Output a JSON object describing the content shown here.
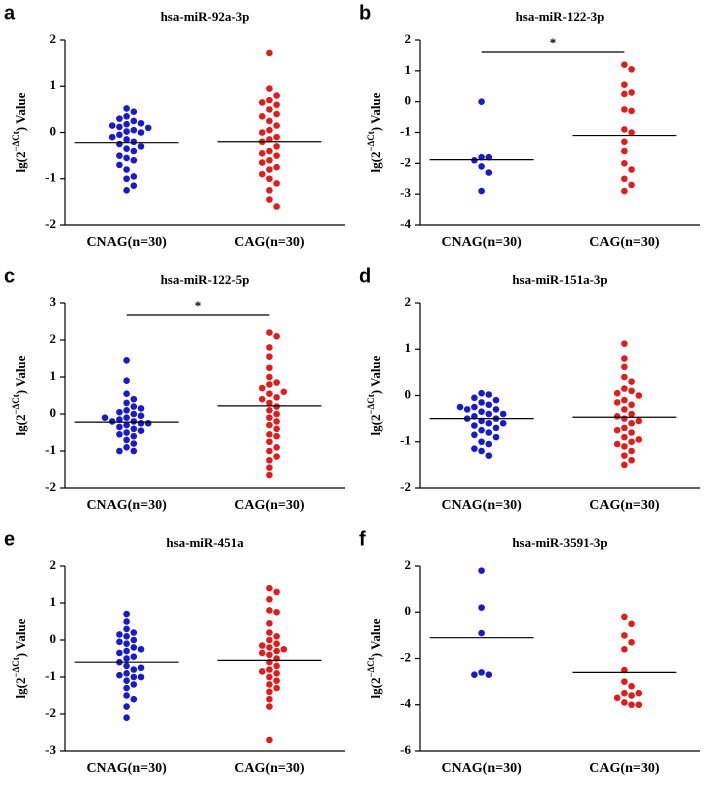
{
  "chart_data": [
    {
      "type": "strip",
      "panel": "a",
      "title": "hsa-miR-92a-3p",
      "ylabel": [
        "lg(2",
        "−ΔCt",
        ") Value"
      ],
      "ylim": [
        -2,
        2
      ],
      "yticks": [
        -2,
        -1,
        0,
        1,
        2
      ],
      "series": [
        {
          "name": "CNAG(n=30)",
          "color": "#1a1acd",
          "mean": -0.22,
          "values": [
            0.52,
            0.45,
            0.35,
            0.3,
            0.25,
            0.2,
            0.18,
            0.15,
            0.12,
            0.1,
            0.05,
            0.02,
            0,
            -0.05,
            -0.1,
            -0.15,
            -0.2,
            -0.25,
            -0.3,
            -0.35,
            -0.4,
            -0.5,
            -0.55,
            -0.6,
            -0.7,
            -0.8,
            -0.95,
            -1.0,
            -1.15,
            -1.25
          ]
        },
        {
          "name": "CAG(n=30)",
          "color": "#e01c1c",
          "mean": -0.2,
          "values": [
            1.72,
            0.95,
            0.8,
            0.7,
            0.65,
            0.6,
            0.5,
            0.4,
            0.35,
            0.25,
            0.15,
            0.05,
            0,
            -0.1,
            -0.15,
            -0.2,
            -0.3,
            -0.4,
            -0.45,
            -0.5,
            -0.6,
            -0.65,
            -0.75,
            -0.8,
            -0.9,
            -1.0,
            -1.1,
            -1.25,
            -1.45,
            -1.6
          ]
        }
      ]
    },
    {
      "type": "strip",
      "panel": "b",
      "title": "hsa-miR-122-3p",
      "ylabel": [
        "lg(2",
        "−ΔCt",
        ") Value"
      ],
      "ylim": [
        -4,
        2
      ],
      "yticks": [
        -4,
        -3,
        -2,
        -1,
        0,
        1,
        2
      ],
      "annotation": "*",
      "series": [
        {
          "name": "CNAG(n=30)",
          "color": "#1a1acd",
          "mean": -1.88,
          "values": [
            0,
            -1.8,
            -1.8,
            -1.9,
            -2.1,
            -2.3,
            -2.9
          ]
        },
        {
          "name": "CAG(n=30)",
          "color": "#e01c1c",
          "mean": -1.1,
          "values": [
            1.2,
            1.05,
            0.55,
            0.25,
            0.3,
            -0.25,
            -0.3,
            -0.9,
            -1.0,
            -1.3,
            -1.6,
            -2.0,
            -2.2,
            -2.5,
            -2.7,
            -2.9
          ]
        }
      ]
    },
    {
      "type": "strip",
      "panel": "c",
      "title": "hsa-miR-122-5p",
      "ylabel": [
        "lg(2",
        "−ΔCt",
        ") Value"
      ],
      "ylim": [
        -2,
        3
      ],
      "yticks": [
        -2,
        -1,
        0,
        1,
        2,
        3
      ],
      "annotation": "*",
      "series": [
        {
          "name": "CNAG(n=30)",
          "color": "#1a1acd",
          "mean": -0.22,
          "values": [
            1.45,
            0.9,
            0.55,
            0.4,
            0.3,
            0.2,
            0.1,
            0.05,
            0,
            -0.05,
            -0.1,
            -0.15,
            -0.2,
            -0.2,
            -0.25,
            -0.3,
            -0.35,
            -0.4,
            -0.5,
            -0.55,
            -0.6,
            -0.7,
            -0.8,
            -0.9,
            -1.0,
            -1.0,
            0.15,
            -0.45,
            -0.25,
            -0.1
          ]
        },
        {
          "name": "CAG(n=30)",
          "color": "#e01c1c",
          "mean": 0.22,
          "values": [
            2.2,
            2.1,
            1.8,
            1.55,
            1.25,
            1.0,
            0.85,
            0.8,
            0.7,
            0.55,
            0.45,
            0.4,
            0.3,
            0.2,
            0.1,
            0,
            -0.1,
            -0.2,
            -0.3,
            -0.4,
            -0.55,
            -0.6,
            -0.75,
            -0.9,
            -1.0,
            -1.15,
            -1.25,
            -1.45,
            -1.65,
            0.6
          ]
        }
      ]
    },
    {
      "type": "strip",
      "panel": "d",
      "title": "hsa-miR-151a-3p",
      "ylabel": [
        "lg(2",
        "−ΔCt",
        ") Value"
      ],
      "ylim": [
        -2,
        2
      ],
      "yticks": [
        -2,
        -1,
        0,
        1,
        2
      ],
      "series": [
        {
          "name": "CNAG(n=30)",
          "color": "#1a1acd",
          "mean": -0.5,
          "values": [
            0.05,
            0.02,
            -0.05,
            -0.1,
            -0.15,
            -0.2,
            -0.25,
            -0.3,
            -0.3,
            -0.35,
            -0.4,
            -0.4,
            -0.45,
            -0.5,
            -0.5,
            -0.55,
            -0.6,
            -0.6,
            -0.65,
            -0.7,
            -0.75,
            -0.8,
            -0.85,
            -0.9,
            -1.0,
            -1.05,
            -1.15,
            -1.2,
            -1.3,
            -0.25
          ]
        },
        {
          "name": "CAG(n=30)",
          "color": "#e01c1c",
          "mean": -0.47,
          "values": [
            1.12,
            0.8,
            0.62,
            0.4,
            0.3,
            0.15,
            0.1,
            0.05,
            0,
            -0.1,
            -0.2,
            -0.3,
            -0.4,
            -0.45,
            -0.5,
            -0.6,
            -0.7,
            -0.75,
            -0.8,
            -0.9,
            -1.0,
            -1.05,
            -1.1,
            -1.2,
            -1.3,
            -1.4,
            -1.5,
            -0.55,
            -0.15,
            -0.95
          ]
        }
      ]
    },
    {
      "type": "strip",
      "panel": "e",
      "title": "hsa-miR-451a",
      "ylabel": [
        "lg(2",
        "−ΔCt",
        ") Value"
      ],
      "ylim": [
        -3,
        2
      ],
      "yticks": [
        -3,
        -2,
        -1,
        0,
        1,
        2
      ],
      "series": [
        {
          "name": "CNAG(n=30)",
          "color": "#1a1acd",
          "mean": -0.6,
          "values": [
            0.7,
            0.5,
            0.3,
            0.2,
            0.15,
            0.1,
            0,
            -0.05,
            -0.1,
            -0.2,
            -0.3,
            -0.35,
            -0.45,
            -0.5,
            -0.6,
            -0.7,
            -0.8,
            -0.9,
            -0.95,
            -1.0,
            -1.0,
            -1.1,
            -1.2,
            -1.3,
            -1.5,
            -1.6,
            -1.8,
            -2.1,
            -0.25,
            -0.75
          ]
        },
        {
          "name": "CAG(n=30)",
          "color": "#e01c1c",
          "mean": -0.55,
          "values": [
            1.4,
            1.3,
            1.1,
            0.8,
            0.75,
            0.45,
            0.2,
            0.1,
            0,
            -0.1,
            -0.2,
            -0.3,
            -0.4,
            -0.5,
            -0.6,
            -0.7,
            -0.8,
            -0.9,
            -1.0,
            -1.1,
            -1.2,
            -1.3,
            -1.4,
            -1.6,
            -1.8,
            -2.7,
            -0.15,
            -0.35,
            -0.85,
            -0.25
          ]
        }
      ]
    },
    {
      "type": "strip",
      "panel": "f",
      "title": "hsa-miR-3591-3p",
      "ylabel": [
        "lg(2",
        "−ΔCt",
        ") Value"
      ],
      "ylim": [
        -6,
        2
      ],
      "yticks": [
        -6,
        -4,
        -2,
        0,
        2
      ],
      "series": [
        {
          "name": "CNAG(n=30)",
          "color": "#1a1acd",
          "mean": -1.1,
          "values": [
            1.8,
            0.2,
            -0.9,
            -2.6,
            -2.7,
            -2.7
          ]
        },
        {
          "name": "CAG(n=30)",
          "color": "#e01c1c",
          "mean": -2.6,
          "values": [
            -0.2,
            -0.5,
            -1.0,
            -1.3,
            -1.6,
            -2.5,
            -3.0,
            -3.2,
            -3.5,
            -3.6,
            -3.7,
            -3.9,
            -4.0,
            -4.0,
            -3.5
          ]
        }
      ]
    }
  ]
}
